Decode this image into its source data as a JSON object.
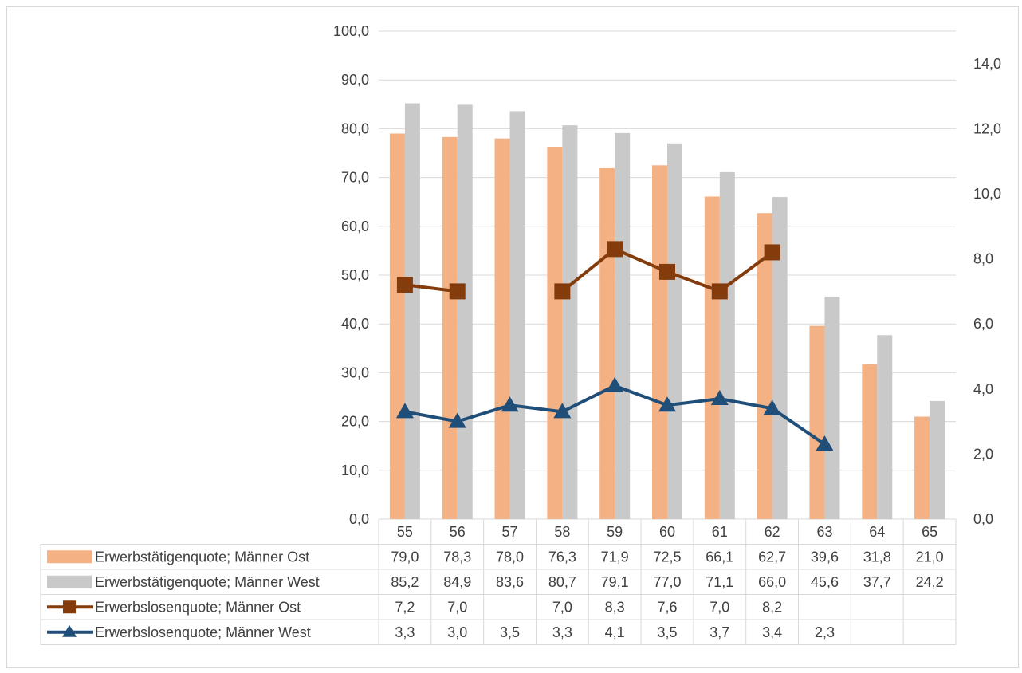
{
  "chart_data": {
    "type": "bar",
    "categories": [
      "55",
      "56",
      "57",
      "58",
      "59",
      "60",
      "61",
      "62",
      "63",
      "64",
      "65"
    ],
    "y_left": {
      "ylim": [
        0,
        100
      ],
      "ticks": [
        "0,0",
        "10,0",
        "20,0",
        "30,0",
        "40,0",
        "50,0",
        "60,0",
        "70,0",
        "80,0",
        "90,0",
        "100,0"
      ]
    },
    "y_right": {
      "ylim": [
        0,
        15
      ],
      "ticks": [
        "0,0",
        "2,0",
        "4,0",
        "6,0",
        "8,0",
        "10,0",
        "12,0",
        "14,0"
      ]
    },
    "grid": true,
    "data_table": true,
    "series": [
      {
        "name": "Erwerbstätigenquote; Männer Ost",
        "type": "bar",
        "axis": "left",
        "color": "#f4b183",
        "values": [
          79.0,
          78.3,
          78.0,
          76.3,
          71.9,
          72.5,
          66.1,
          62.7,
          39.6,
          31.8,
          21.0
        ],
        "labels": [
          "79,0",
          "78,3",
          "78,0",
          "76,3",
          "71,9",
          "72,5",
          "66,1",
          "62,7",
          "39,6",
          "31,8",
          "21,0"
        ]
      },
      {
        "name": "Erwerbstätigenquote; Männer West",
        "type": "bar",
        "axis": "left",
        "color": "#c9c9c9",
        "values": [
          85.2,
          84.9,
          83.6,
          80.7,
          79.1,
          77.0,
          71.1,
          66.0,
          45.6,
          37.7,
          24.2
        ],
        "labels": [
          "85,2",
          "84,9",
          "83,6",
          "80,7",
          "79,1",
          "77,0",
          "71,1",
          "66,0",
          "45,6",
          "37,7",
          "24,2"
        ]
      },
      {
        "name": "Erwerbslosenquote; Männer Ost",
        "type": "line",
        "axis": "right",
        "color": "#843c0c",
        "marker": "square",
        "values": [
          7.2,
          7.0,
          null,
          7.0,
          8.3,
          7.6,
          7.0,
          8.2,
          null,
          null,
          null
        ],
        "labels": [
          "7,2",
          "7,0",
          "",
          "7,0",
          "8,3",
          "7,6",
          "7,0",
          "8,2",
          "",
          "",
          ""
        ]
      },
      {
        "name": "Erwerbslosenquote; Männer West",
        "type": "line",
        "axis": "right",
        "color": "#1f4e79",
        "marker": "triangle",
        "values": [
          3.3,
          3.0,
          3.5,
          3.3,
          4.1,
          3.5,
          3.7,
          3.4,
          2.3,
          null,
          null
        ],
        "labels": [
          "3,3",
          "3,0",
          "3,5",
          "3,3",
          "4,1",
          "3,5",
          "3,7",
          "3,4",
          "2,3",
          "",
          ""
        ]
      }
    ]
  }
}
